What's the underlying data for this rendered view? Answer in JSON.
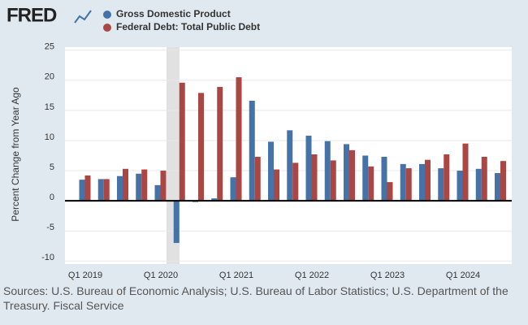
{
  "logo": "FRED",
  "chart_data": {
    "type": "bar",
    "categories": [
      "Q1 2019",
      null,
      null,
      null,
      "Q1 2020",
      null,
      null,
      null,
      "Q1 2021",
      null,
      null,
      null,
      "Q1 2022",
      null,
      null,
      null,
      "Q1 2023",
      null,
      null,
      null,
      "Q1 2024",
      null,
      null
    ],
    "series": [
      {
        "name": "Gross Domestic Product",
        "color": "#4572a7",
        "values": [
          3.5,
          3.6,
          4.1,
          4.5,
          2.6,
          -7.0,
          -0.2,
          0.4,
          3.9,
          16.6,
          9.8,
          11.7,
          10.8,
          9.9,
          9.4,
          7.5,
          7.3,
          6.1,
          6.1,
          5.4,
          5.0,
          5.3,
          4.6
        ]
      },
      {
        "name": "Federal Debt: Total Public Debt",
        "color": "#aa4643",
        "values": [
          4.2,
          3.6,
          5.3,
          5.2,
          5.0,
          19.6,
          17.9,
          18.9,
          20.5,
          7.3,
          5.2,
          6.3,
          7.7,
          6.7,
          8.4,
          5.7,
          3.1,
          5.4,
          6.8,
          7.7,
          9.5,
          7.3,
          6.6
        ]
      }
    ],
    "y_label": "Percent Change from Year Ago",
    "ylim": [
      -10.5,
      25.5
    ],
    "yticks": [
      -10,
      -5,
      0,
      5,
      10,
      15,
      20,
      25
    ],
    "grid": true,
    "legend": "top",
    "source": "Sources: U.S. Bureau of Economic Analysis; U.S. Bureau of Labor Statistics; U.S. Department of the Treasury. Fiscal Service"
  }
}
